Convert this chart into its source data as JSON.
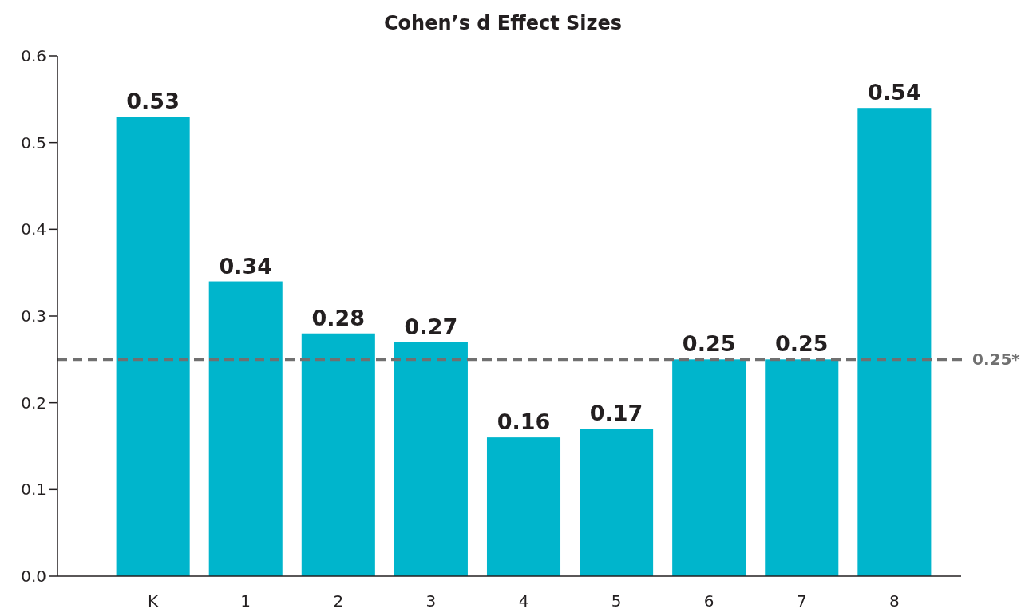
{
  "chart_data": {
    "type": "bar",
    "title": "Cohen’s d Effect Sizes",
    "categories": [
      "K",
      "1",
      "2",
      "3",
      "4",
      "5",
      "6",
      "7",
      "8"
    ],
    "values": [
      0.53,
      0.34,
      0.28,
      0.27,
      0.16,
      0.17,
      0.25,
      0.25,
      0.54
    ],
    "color": "#00b5cc",
    "ylim": [
      0,
      0.6
    ],
    "yticks": [
      {
        "value": 0,
        "label": "0.0"
      },
      0.1,
      0.2,
      0.3,
      0.4,
      0.5,
      0.6
    ],
    "data_labels": true,
    "grid": false,
    "ref_lines": [
      {
        "axis": "y",
        "value": 0.25,
        "label": "0.25*",
        "color": "#707070",
        "line_style": "dashed"
      }
    ]
  }
}
